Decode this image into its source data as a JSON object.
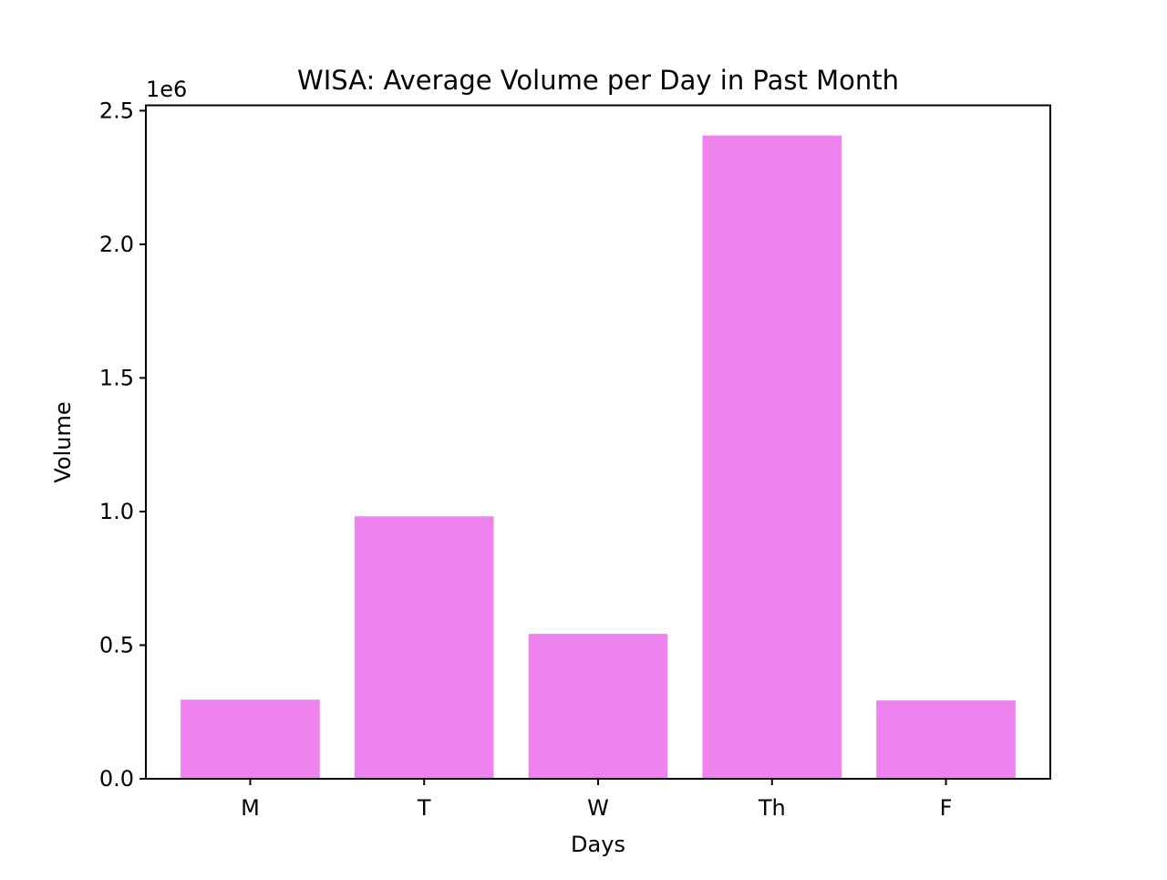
{
  "chart_data": {
    "type": "bar",
    "title": "WISA: Average Volume per Day in Past Month",
    "xlabel": "Days",
    "ylabel": "Volume",
    "y_offset_text": "1e6",
    "categories": [
      "M",
      "T",
      "W",
      "Th",
      "F"
    ],
    "values": [
      296000,
      982000,
      542000,
      2407000,
      293000
    ],
    "ylim": [
      0,
      2520000
    ],
    "yticks": [
      0,
      500000,
      1000000,
      1500000,
      2000000,
      2500000
    ],
    "ytick_labels": [
      "0.0",
      "0.5",
      "1.0",
      "1.5",
      "2.0",
      "2.5"
    ],
    "bar_color": "#ee82ee",
    "grid": false,
    "legend": "none"
  }
}
